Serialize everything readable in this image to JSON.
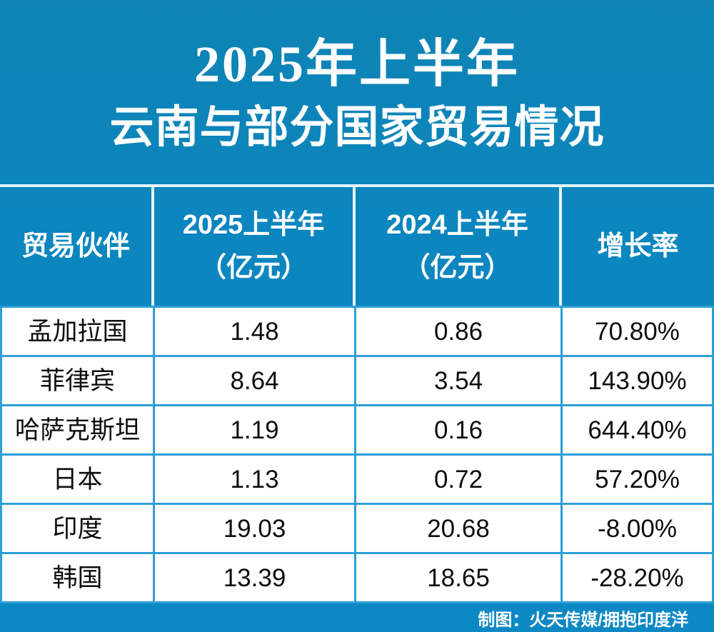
{
  "title": {
    "line1": "2025年上半年",
    "line2": "云南与部分国家贸易情况"
  },
  "table": {
    "columns": [
      {
        "label": "贸易伙伴",
        "sub": ""
      },
      {
        "label": "2025上半年",
        "sub": "（亿元）"
      },
      {
        "label": "2024上半年",
        "sub": "（亿元）"
      },
      {
        "label": "增长率",
        "sub": ""
      }
    ],
    "rows": [
      {
        "partner": "孟加拉国",
        "v2025": "1.48",
        "v2024": "0.86",
        "growth": "70.80%"
      },
      {
        "partner": "菲律宾",
        "v2025": "8.64",
        "v2024": "3.54",
        "growth": "143.90%"
      },
      {
        "partner": "哈萨克斯坦",
        "v2025": "1.19",
        "v2024": "0.16",
        "growth": "644.40%"
      },
      {
        "partner": "日本",
        "v2025": "1.13",
        "v2024": "0.72",
        "growth": "57.20%"
      },
      {
        "partner": "印度",
        "v2025": "19.03",
        "v2024": "20.68",
        "growth": "-8.00%"
      },
      {
        "partner": "韩国",
        "v2025": "13.39",
        "v2024": "18.65",
        "growth": "-28.20%"
      }
    ]
  },
  "footer": {
    "credit": "制图：火天传媒/拥抱印度洋"
  },
  "colors": {
    "background_blue": "#0C86BE",
    "grid_line_blue": "#2D9ED8",
    "pale_divider": "#E4F6FA",
    "cell_background": "#FFFFFF",
    "data_text": "#0D0D0D",
    "header_text": "#FFFFFF"
  },
  "chart_data": {
    "type": "table",
    "title": "2025年上半年 云南与部分国家贸易情况",
    "columns": [
      "贸易伙伴",
      "2025上半年（亿元）",
      "2024上半年（亿元）",
      "增长率"
    ],
    "rows": [
      [
        "孟加拉国",
        1.48,
        0.86,
        "70.80%"
      ],
      [
        "菲律宾",
        8.64,
        3.54,
        "143.90%"
      ],
      [
        "哈萨克斯坦",
        1.19,
        0.16,
        "644.40%"
      ],
      [
        "日本",
        1.13,
        0.72,
        "57.20%"
      ],
      [
        "印度",
        19.03,
        20.68,
        "-8.00%"
      ],
      [
        "韩国",
        13.39,
        18.65,
        "-28.20%"
      ]
    ],
    "units": "亿元",
    "credit": "制图：火天传媒/拥抱印度洋"
  }
}
